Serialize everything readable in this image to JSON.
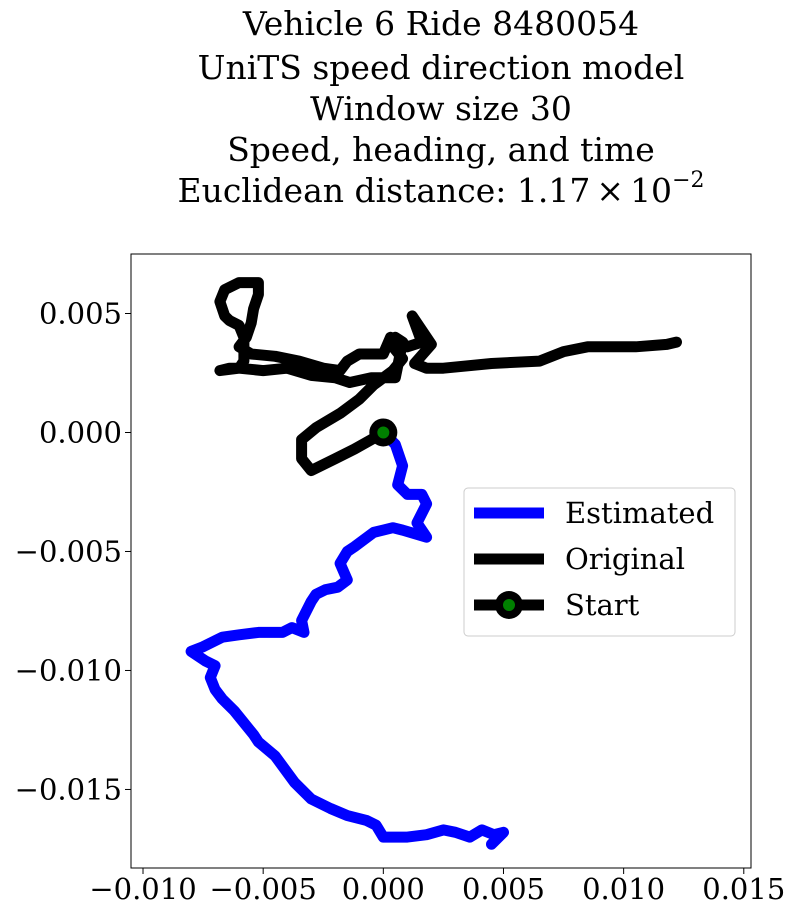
{
  "chart_data": {
    "type": "line",
    "title_lines": [
      "Vehicle 6 Ride 8480054",
      "UniTS speed direction model",
      "Window size 30",
      "Speed, heading, and time",
      "Euclidean distance: "
    ],
    "title_math": {
      "mantissa": "1.17",
      "times": "×",
      "base": "10",
      "exponent": "−2"
    },
    "xlabel": "",
    "ylabel": "",
    "xlim": [
      -0.0105,
      0.0153
    ],
    "ylim": [
      -0.0183,
      0.0075
    ],
    "x_ticks": [
      -0.01,
      -0.005,
      0.0,
      0.005,
      0.01,
      0.015
    ],
    "x_tick_labels": [
      "−0.010",
      "−0.005",
      "0.000",
      "0.005",
      "0.010",
      "0.015"
    ],
    "y_ticks": [
      0.005,
      0.0,
      -0.005,
      -0.01,
      -0.015
    ],
    "y_tick_labels": [
      "0.005",
      "0.000",
      "−0.005",
      "−0.010",
      "−0.015"
    ],
    "grid": false,
    "legend_position": "center-right",
    "series": [
      {
        "name": "Estimated",
        "color": "#0000ff",
        "x": [
          0.0,
          0.0005,
          0.0008,
          0.0006,
          0.001,
          0.0016,
          0.0018,
          0.0014,
          0.0018,
          0.0008,
          0.0004,
          -0.0004,
          -0.0012,
          -0.0015,
          -0.0018,
          -0.0015,
          -0.0019,
          -0.0024,
          -0.0028,
          -0.003,
          -0.0034,
          -0.0033,
          -0.0038,
          -0.0042,
          -0.0052,
          -0.006,
          -0.0067,
          -0.0071,
          -0.0075,
          -0.008,
          -0.0074,
          -0.007,
          -0.0072,
          -0.007,
          -0.0067,
          -0.0062,
          -0.0054,
          -0.0052,
          -0.0045,
          -0.0037,
          -0.003,
          -0.0022,
          -0.0015,
          -0.0007,
          -0.0003,
          0.0,
          0.001,
          0.0018,
          0.0025,
          0.003,
          0.0036,
          0.0041,
          0.0046,
          0.005,
          0.0045
        ],
        "y": [
          0.0,
          -0.0005,
          -0.0014,
          -0.0022,
          -0.0026,
          -0.0026,
          -0.003,
          -0.0038,
          -0.0044,
          -0.0041,
          -0.004,
          -0.0042,
          -0.0048,
          -0.005,
          -0.0055,
          -0.0062,
          -0.0065,
          -0.0066,
          -0.0068,
          -0.0071,
          -0.0079,
          -0.0084,
          -0.0082,
          -0.0084,
          -0.0084,
          -0.0085,
          -0.0086,
          -0.0088,
          -0.009,
          -0.0092,
          -0.0096,
          -0.0098,
          -0.0103,
          -0.0108,
          -0.0112,
          -0.0117,
          -0.0127,
          -0.013,
          -0.0136,
          -0.0147,
          -0.0154,
          -0.0158,
          -0.0161,
          -0.0163,
          -0.0165,
          -0.017,
          -0.017,
          -0.0169,
          -0.0167,
          -0.0168,
          -0.017,
          -0.0167,
          -0.0169,
          -0.0168,
          -0.0173
        ]
      },
      {
        "name": "Original",
        "color": "#000000",
        "x": [
          0.0,
          -0.0005,
          -0.0012,
          -0.002,
          -0.003,
          -0.0034,
          -0.0034,
          -0.0028,
          -0.0018,
          -0.001,
          -0.0004,
          0.0004,
          0.0008,
          0.0004,
          0.0003,
          0.0,
          -0.001,
          -0.0015,
          -0.0018,
          -0.0025,
          -0.0035,
          -0.0045,
          -0.0055,
          -0.006,
          -0.0057,
          -0.0055,
          -0.0054,
          -0.0052,
          -0.0052,
          -0.006,
          -0.0066,
          -0.0068,
          -0.0066,
          -0.0064,
          -0.006,
          -0.0058,
          -0.0058,
          -0.0058,
          -0.006,
          -0.0064,
          -0.0068,
          -0.006,
          -0.005,
          -0.004,
          -0.003,
          -0.002,
          -0.0014,
          -0.0005,
          0.0005,
          0.0008,
          0.0005,
          0.001,
          0.0016,
          0.0012,
          0.0018,
          0.002,
          0.0013,
          0.0018,
          0.0025,
          0.0045,
          0.0065,
          0.0075,
          0.0085,
          0.0095,
          0.0105,
          0.0118,
          0.0122
        ],
        "y": [
          0.0,
          -0.0003,
          -0.0007,
          -0.0011,
          -0.0016,
          -0.0011,
          -0.0003,
          0.0002,
          0.0008,
          0.0014,
          0.002,
          0.0026,
          0.0031,
          0.0036,
          0.004,
          0.0033,
          0.0033,
          0.003,
          0.0026,
          0.0027,
          0.003,
          0.0032,
          0.0033,
          0.0036,
          0.004,
          0.0046,
          0.0052,
          0.0058,
          0.0063,
          0.0063,
          0.006,
          0.0055,
          0.0049,
          0.0047,
          0.0045,
          0.004,
          0.0034,
          0.003,
          0.0027,
          0.0027,
          0.0026,
          0.0027,
          0.0026,
          0.0027,
          0.0024,
          0.0023,
          0.0021,
          0.0023,
          0.0023,
          0.0038,
          0.004,
          0.0036,
          0.0038,
          0.0049,
          0.004,
          0.0037,
          0.0029,
          0.0027,
          0.0027,
          0.0029,
          0.003,
          0.0034,
          0.0036,
          0.0036,
          0.0036,
          0.0037,
          0.0038
        ]
      }
    ],
    "start_point": {
      "name": "Start",
      "x": 0.0,
      "y": 0.0,
      "line_color": "#000000",
      "marker_color": "#008000"
    }
  }
}
